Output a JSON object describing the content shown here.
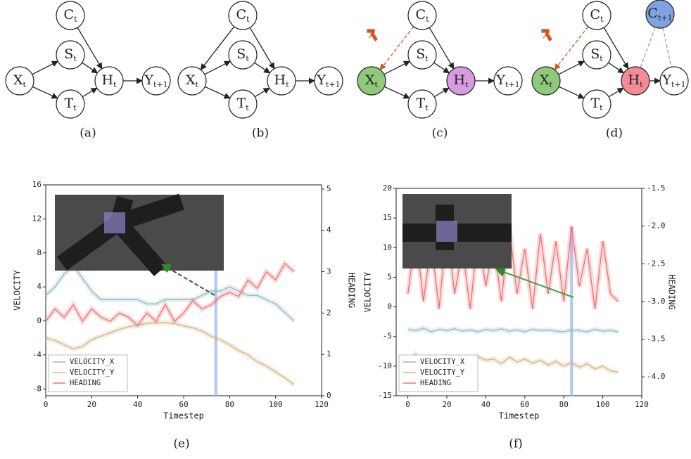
{
  "diagrams": [
    {
      "caption": "(a)",
      "nodes": [
        {
          "label": "C",
          "sub": "t"
        },
        {
          "label": "S",
          "sub": "t"
        },
        {
          "label": "X",
          "sub": "t"
        },
        {
          "label": "T",
          "sub": "t"
        },
        {
          "label": "H",
          "sub": "t"
        },
        {
          "label": "Y",
          "sub": "t+1"
        }
      ]
    },
    {
      "caption": "(b)",
      "nodes": [
        {
          "label": "C",
          "sub": "t"
        },
        {
          "label": "S",
          "sub": "t"
        },
        {
          "label": "X",
          "sub": "t"
        },
        {
          "label": "T",
          "sub": "t"
        },
        {
          "label": "H",
          "sub": "t"
        },
        {
          "label": "Y",
          "sub": "t+1"
        }
      ]
    },
    {
      "caption": "(c)",
      "nodes": [
        {
          "label": "C",
          "sub": "t"
        },
        {
          "label": "S",
          "sub": "t"
        },
        {
          "label": "X",
          "sub": "t"
        },
        {
          "label": "T",
          "sub": "t"
        },
        {
          "label": "H",
          "sub": "t"
        },
        {
          "label": "Y",
          "sub": "t+1"
        }
      ]
    },
    {
      "caption": "(d)",
      "nodes": [
        {
          "label": "C",
          "sub": "t"
        },
        {
          "label": "S",
          "sub": "t"
        },
        {
          "label": "X",
          "sub": "t"
        },
        {
          "label": "T",
          "sub": "t"
        },
        {
          "label": "H",
          "sub": "t"
        },
        {
          "label": "Y",
          "sub": "t+1"
        },
        {
          "label": "C",
          "sub": "t+1"
        }
      ]
    }
  ],
  "chart_data": [
    {
      "type": "line",
      "caption": "(e)",
      "xlabel": "Timestep",
      "ylabel": "VELOCITY",
      "y2label": "HEADING",
      "x": [
        0,
        4,
        8,
        12,
        16,
        20,
        24,
        28,
        32,
        36,
        40,
        44,
        48,
        52,
        56,
        60,
        64,
        68,
        72,
        76,
        80,
        84,
        88,
        92,
        96,
        100,
        104,
        108
      ],
      "xlim": [
        0,
        120
      ],
      "xticks": [
        0,
        20,
        40,
        60,
        80,
        100,
        120
      ],
      "ylim": [
        -8.8,
        16
      ],
      "yticks": [
        -8,
        -4,
        0,
        4,
        8,
        12,
        16
      ],
      "y2lim": [
        0,
        5.1
      ],
      "y2ticks": [
        0,
        1,
        2,
        3,
        4,
        5
      ],
      "highlight_x": 74,
      "legend": "lower left",
      "series": [
        {
          "name": "VELOCITY_X",
          "color": "#8fbcc4",
          "values": [
            3,
            4,
            5.5,
            6.5,
            5,
            3.5,
            2.5,
            2.5,
            2.5,
            2.5,
            2.5,
            2,
            2,
            2.5,
            2.5,
            2.5,
            2.5,
            3,
            3.5,
            3.5,
            4,
            3.5,
            3,
            3,
            2.5,
            2,
            1,
            0
          ]
        },
        {
          "name": "VELOCITY_Y",
          "color": "#d4b483",
          "values": [
            -2,
            -2.3,
            -2.8,
            -3.3,
            -3,
            -2.2,
            -1.8,
            -1.4,
            -1,
            -0.7,
            -0.5,
            -0.3,
            -0.2,
            -0.2,
            -0.3,
            -0.6,
            -0.8,
            -1.2,
            -1.8,
            -2.2,
            -2.8,
            -3.5,
            -4,
            -4.8,
            -5.3,
            -6,
            -6.7,
            -7.5
          ]
        },
        {
          "name": "HEADING",
          "color": "#f07070",
          "axis": "y2",
          "values": [
            1.8,
            2.1,
            1.9,
            2.2,
            1.8,
            2.1,
            1.9,
            1.8,
            2.0,
            1.9,
            1.7,
            2.0,
            1.8,
            2.2,
            1.8,
            2.0,
            2.3,
            2.1,
            2.2,
            2.4,
            2.5,
            2.4,
            2.8,
            2.6,
            3.0,
            2.8,
            3.2,
            3.0
          ]
        }
      ]
    },
    {
      "type": "line",
      "caption": "(f)",
      "xlabel": "Timestep",
      "ylabel": "VELOCITY",
      "y2label": "HEADING",
      "x": [
        0,
        4,
        8,
        12,
        16,
        20,
        24,
        28,
        32,
        36,
        40,
        44,
        48,
        52,
        56,
        60,
        64,
        68,
        72,
        76,
        80,
        84,
        88,
        92,
        96,
        100,
        104,
        108
      ],
      "xlim": [
        -6,
        120
      ],
      "xticks": [
        0,
        20,
        40,
        60,
        80,
        100,
        120
      ],
      "ylim": [
        -15,
        20
      ],
      "yticks": [
        -15,
        -10,
        -5,
        0,
        5,
        10,
        15,
        20
      ],
      "y2lim": [
        -4.25,
        -1.5
      ],
      "y2ticks": [
        {
          "value": -4.0,
          "label": "-4.0"
        },
        -3.5,
        {
          "value": -3.0,
          "label": "-3.0"
        },
        -2.5,
        {
          "value": -2.0,
          "label": "-2.0"
        },
        -1.5
      ],
      "highlight_x": 84,
      "legend": "lower left",
      "series": [
        {
          "name": "VELOCITY_X",
          "color": "#8fbcc4",
          "values": [
            -3.8,
            -4,
            -3.6,
            -4.2,
            -3.8,
            -4,
            -3.7,
            -4.1,
            -3.9,
            -4.2,
            -3.8,
            -4,
            -3.7,
            -4.1,
            -3.9,
            -4.2,
            -3.8,
            -4,
            -3.9,
            -4.1,
            -4.2,
            -3.9,
            -4,
            -4.2,
            -3.8,
            -4.1,
            -4,
            -4.2
          ]
        },
        {
          "name": "VELOCITY_Y",
          "color": "#d4b483",
          "values": [
            -9,
            -8,
            -9.5,
            -8.5,
            -9,
            -8.2,
            -9.4,
            -8.6,
            -9.2,
            -8.4,
            -9,
            -8.8,
            -9.6,
            -8.5,
            -9.3,
            -8.8,
            -9.5,
            -9,
            -9.8,
            -9.2,
            -10,
            -9.4,
            -10.2,
            -9.6,
            -10.5,
            -10,
            -10.8,
            -11
          ]
        },
        {
          "name": "HEADING",
          "color": "#f07070",
          "axis": "y2",
          "values": [
            -2.9,
            -2.1,
            -3.0,
            -2.2,
            -3.1,
            -2.0,
            -2.9,
            -2.3,
            -3.1,
            -2.1,
            -2.8,
            -2.2,
            -3.0,
            -2.0,
            -2.9,
            -2.3,
            -3.1,
            -2.1,
            -2.9,
            -2.2,
            -3.0,
            -2.0,
            -2.8,
            -2.3,
            -3.1,
            -2.2,
            -2.9,
            -3.0
          ]
        }
      ]
    }
  ]
}
